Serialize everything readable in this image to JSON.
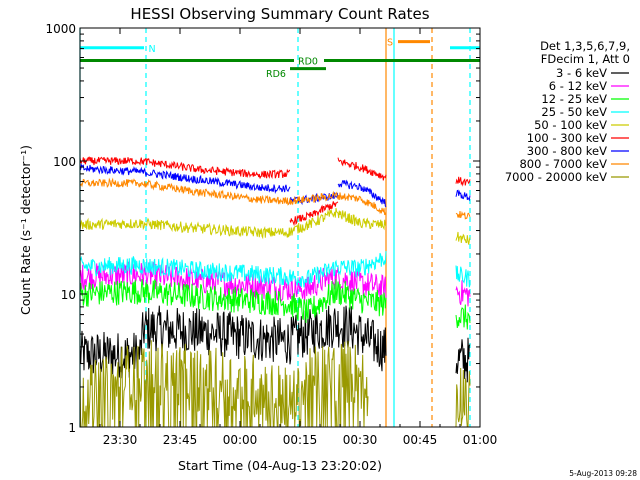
{
  "chart_data": {
    "type": "line",
    "title": "HESSI Observing Summary Count Rates",
    "xlabel": "Start Time (04-Aug-13 23:20:02)",
    "ylabel": "Count Rate (s⁻¹ detector⁻¹)",
    "x_unit": "minutes from 23:20",
    "xlim": [
      0,
      100
    ],
    "ylim": [
      1,
      1000
    ],
    "yscale": "log",
    "x_ticks": [
      {
        "x": 10,
        "label": "23:30"
      },
      {
        "x": 25,
        "label": "23:45"
      },
      {
        "x": 40,
        "label": "00:00"
      },
      {
        "x": 55,
        "label": "00:15"
      },
      {
        "x": 70,
        "label": "00:30"
      },
      {
        "x": 85,
        "label": "00:45"
      },
      {
        "x": 100,
        "label": "01:00"
      }
    ],
    "y_ticks": [
      {
        "y": 1,
        "label": "1"
      },
      {
        "y": 10,
        "label": "10"
      },
      {
        "y": 100,
        "label": "100"
      },
      {
        "y": 1000,
        "label": "1000"
      }
    ],
    "legend": {
      "position": "right",
      "header": [
        "Det 1,3,5,6,7,9,",
        "FDecim 1, Att 0"
      ]
    },
    "series": [
      {
        "name": "3 - 6 keV",
        "color": "#000000",
        "segments": [
          {
            "x": [
              0,
              15,
              16,
              30,
              45,
              52,
              60,
              64,
              68,
              72,
              76.5
            ],
            "y": [
              3.5,
              3.5,
              5.5,
              5.2,
              4.6,
              4.4,
              5.5,
              6.0,
              5.5,
              4.5,
              3.8
            ]
          },
          {
            "x": [
              94,
              97.5
            ],
            "y": [
              3.2,
              3.2
            ]
          }
        ]
      },
      {
        "name": "6 - 12 keV",
        "color": "#ff00ff",
        "segments": [
          {
            "x": [
              0,
              15,
              30,
              45,
              52,
              57,
              60,
              64,
              70,
              76.5
            ],
            "y": [
              13.5,
              14.0,
              12.5,
              11.5,
              11.0,
              10.8,
              12.5,
              13.5,
              12.0,
              11.0
            ]
          },
          {
            "x": [
              94,
              97.5
            ],
            "y": [
              10.5,
              9.8
            ]
          }
        ]
      },
      {
        "name": "12 - 25 keV",
        "color": "#00ff00",
        "segments": [
          {
            "x": [
              0,
              15,
              30,
              45,
              52,
              57,
              61,
              64,
              70,
              76.5
            ],
            "y": [
              10.0,
              10.5,
              9.5,
              8.8,
              8.5,
              7.2,
              9.0,
              10.5,
              9.0,
              8.3
            ]
          },
          {
            "x": [
              94,
              97.5
            ],
            "y": [
              7.0,
              6.5
            ]
          }
        ]
      },
      {
        "name": "25 - 50 keV",
        "color": "#00ffff",
        "segments": [
          {
            "x": [
              0,
              15,
              30,
              45,
              52,
              57,
              61,
              64,
              70,
              76.5
            ],
            "y": [
              16.0,
              16.5,
              15.0,
              14.0,
              13.5,
              13.0,
              14.5,
              16.0,
              15.5,
              19.0
            ]
          },
          {
            "x": [
              94,
              97.5
            ],
            "y": [
              14.0,
              13.0
            ]
          }
        ]
      },
      {
        "name": "50 - 100 keV",
        "color": "#cccc00",
        "segments": [
          {
            "x": [
              0,
              15,
              30,
              45,
              52,
              58,
              64,
              70,
              76.5
            ],
            "y": [
              33.0,
              34.0,
              31.0,
              29.0,
              29.0,
              34.0,
              41.0,
              34.0,
              33.0
            ]
          },
          {
            "x": [
              94,
              97.5
            ],
            "y": [
              27.0,
              25.0
            ]
          }
        ]
      },
      {
        "name": "100 - 300 keV",
        "color": "#ff0000",
        "segments": [
          {
            "x": [
              0,
              15,
              30,
              45,
              52.5
            ],
            "y": [
              100,
              100,
              86,
              79,
              80
            ]
          },
          {
            "x": [
              52.5,
              58,
              62,
              64.5
            ],
            "y": [
              35,
              39,
              45,
              48
            ]
          },
          {
            "x": [
              64.5,
              70,
              76.5
            ],
            "y": [
              100,
              90,
              75
            ]
          },
          {
            "x": [
              94,
              97.5
            ],
            "y": [
              72,
              68
            ]
          }
        ]
      },
      {
        "name": "300 - 800 keV",
        "color": "#0000ff",
        "segments": [
          {
            "x": [
              0,
              15,
              30,
              45,
              52.5
            ],
            "y": [
              88,
              83,
              72,
              63,
              62
            ]
          },
          {
            "x": [
              52.5,
              58,
              64.5
            ],
            "y": [
              50,
              52,
              55
            ]
          },
          {
            "x": [
              64.5,
              70,
              76.5
            ],
            "y": [
              68,
              64,
              48
            ]
          },
          {
            "x": [
              94,
              97.5
            ],
            "y": [
              57,
              53
            ]
          }
        ]
      },
      {
        "name": "800 - 7000 keV",
        "color": "#ff8800",
        "segments": [
          {
            "x": [
              0,
              15,
              30,
              45,
              52,
              58,
              64,
              70,
              76.5
            ],
            "y": [
              68,
              68,
              58,
              51,
              50,
              52,
              55,
              52,
              41
            ]
          },
          {
            "x": [
              94,
              97.5
            ],
            "y": [
              40,
              38
            ]
          }
        ]
      },
      {
        "name": "7000 - 20000 keV",
        "color": "#999900",
        "segments": [
          {
            "x": [
              0,
              3,
              9,
              10,
              14,
              15.5,
              25,
              45,
              54,
              56,
              59,
              64,
              68,
              70,
              72
            ],
            "y": [
              2.0,
              1.8,
              2.0,
              2.5,
              2.3,
              2.6,
              2.4,
              2.0,
              1.5,
              2.0,
              2.4,
              2.6,
              2.6,
              2.4,
              1.8
            ]
          },
          {
            "x": [
              94,
              97.5
            ],
            "y": [
              1.8,
              1.8
            ]
          }
        ]
      }
    ],
    "annotations": {
      "labels": [
        {
          "text": "N",
          "x": 18,
          "y": 710,
          "color": "#00ffff"
        },
        {
          "text": "S",
          "x": 77.5,
          "y": 790,
          "color": "#ff8800"
        },
        {
          "text": "RD0",
          "x": 57,
          "y": 570,
          "color": "#008800"
        },
        {
          "text": "RD6",
          "x": 49,
          "y": 460,
          "color": "#008800"
        }
      ],
      "hbars": [
        {
          "x0": 0,
          "x1": 16,
          "y": 710,
          "color": "#00ffff"
        },
        {
          "x0": 92.5,
          "x1": 100,
          "y": 710,
          "color": "#00ffff"
        },
        {
          "x0": 79.5,
          "x1": 87.5,
          "y": 790,
          "color": "#ff8800"
        },
        {
          "x0": 0,
          "x1": 53.5,
          "y": 570,
          "color": "#008800"
        },
        {
          "x0": 61,
          "x1": 100,
          "y": 570,
          "color": "#008800"
        },
        {
          "x0": 52.5,
          "x1": 61.5,
          "y": 495,
          "color": "#008800"
        }
      ],
      "vlines": [
        {
          "x": 0,
          "color": "#00ffff",
          "style": "solid"
        },
        {
          "x": 16.5,
          "color": "#00ffff",
          "style": "dashed"
        },
        {
          "x": 54.5,
          "color": "#00ffff",
          "style": "dashed"
        },
        {
          "x": 78.5,
          "color": "#00ffff",
          "style": "solid"
        },
        {
          "x": 97.5,
          "color": "#00ffff",
          "style": "dashed"
        },
        {
          "x": 76.5,
          "color": "#ff8800",
          "style": "solid"
        },
        {
          "x": 88,
          "color": "#ff8800",
          "style": "dashed"
        }
      ]
    }
  },
  "footer_timestamp": "5-Aug-2013 09:28"
}
